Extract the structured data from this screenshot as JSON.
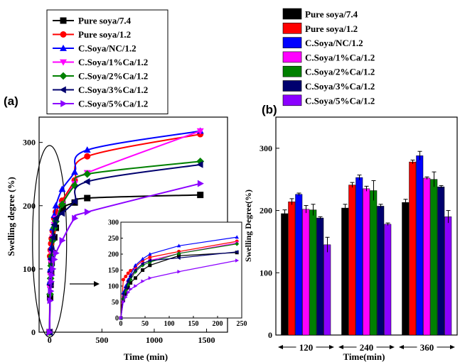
{
  "chart_data": [
    {
      "type": "line",
      "panel_label": "(a)",
      "xlabel": "Time (min)",
      "ylabel": "Swelling degree (%)",
      "xlim": [
        -100,
        1700
      ],
      "ylim": [
        0,
        340
      ],
      "xticks": [
        0,
        500,
        1000,
        1500
      ],
      "yticks": [
        0,
        100,
        200,
        300
      ],
      "legend_position": "top-left",
      "series": [
        {
          "name": "Pure soya/7.4",
          "color": "#000000",
          "marker": "square",
          "x": [
            0,
            5,
            10,
            15,
            20,
            30,
            45,
            60,
            120,
            240,
            360,
            1440
          ],
          "y": [
            0,
            55,
            75,
            95,
            110,
            125,
            150,
            165,
            195,
            205,
            212,
            217
          ]
        },
        {
          "name": "Pure soya/1.2",
          "color": "#ff0000",
          "marker": "circle",
          "x": [
            0,
            5,
            10,
            15,
            20,
            30,
            45,
            60,
            120,
            240,
            360,
            1440
          ],
          "y": [
            0,
            120,
            130,
            140,
            148,
            160,
            180,
            190,
            208,
            240,
            278,
            313
          ]
        },
        {
          "name": "C.Soya/NC/1.2",
          "color": "#0000ff",
          "marker": "triangle-up",
          "x": [
            0,
            5,
            10,
            15,
            20,
            30,
            45,
            60,
            120,
            240,
            360,
            1440
          ],
          "y": [
            0,
            80,
            100,
            120,
            135,
            165,
            185,
            200,
            226,
            253,
            288,
            318
          ]
        },
        {
          "name": "C.Soya/1%Ca/1.2",
          "color": "#ff00ff",
          "marker": "triangle-down",
          "x": [
            0,
            5,
            10,
            15,
            20,
            30,
            45,
            60,
            120,
            240,
            360,
            1440
          ],
          "y": [
            0,
            70,
            90,
            110,
            125,
            150,
            170,
            180,
            202,
            235,
            252,
            318
          ]
        },
        {
          "name": "C.Soya/2%Ca/1.2",
          "color": "#008000",
          "marker": "diamond",
          "x": [
            0,
            5,
            10,
            15,
            20,
            30,
            45,
            60,
            120,
            240,
            360,
            1440
          ],
          "y": [
            0,
            60,
            85,
            105,
            120,
            145,
            165,
            175,
            202,
            232,
            250,
            270
          ]
        },
        {
          "name": "C.Soya/3%Ca/1.2",
          "color": "#00006e",
          "marker": "triangle-left",
          "x": [
            0,
            5,
            10,
            15,
            20,
            30,
            45,
            60,
            120,
            240,
            360,
            1440
          ],
          "y": [
            0,
            75,
            95,
            115,
            130,
            150,
            170,
            180,
            188,
            207,
            238,
            265
          ]
        },
        {
          "name": "C.Soya/5%Ca/1.2",
          "color": "#8b00ff",
          "marker": "triangle-right",
          "x": [
            0,
            5,
            10,
            15,
            20,
            30,
            45,
            60,
            120,
            240,
            360,
            1440
          ],
          "y": [
            0,
            50,
            65,
            80,
            90,
            100,
            115,
            125,
            145,
            180,
            190,
            235
          ]
        }
      ],
      "inset": {
        "xlim": [
          0,
          250
        ],
        "ylim": [
          0,
          300
        ],
        "xticks": [
          0,
          50,
          100,
          150,
          200,
          250
        ],
        "yticks": [
          0,
          50,
          100,
          150,
          200,
          250,
          300
        ],
        "series_source": "same series, x <= 240"
      }
    },
    {
      "type": "bar",
      "panel_label": "(b)",
      "xlabel": "Time(min)",
      "ylabel": "Swelling Degree(%)",
      "ylim": [
        0,
        350
      ],
      "yticks": [
        0,
        100,
        200,
        300
      ],
      "categories": [
        "120",
        "240",
        "360"
      ],
      "legend_position": "top",
      "series": [
        {
          "name": "Pure soya/7.4",
          "color": "#000000",
          "values": [
            195,
            204,
            213
          ],
          "errors": [
            6,
            6,
            5
          ]
        },
        {
          "name": "Pure soya/1.2",
          "color": "#ff0000",
          "values": [
            214,
            241,
            278
          ],
          "errors": [
            5,
            4,
            3
          ]
        },
        {
          "name": "C.Soya/NC/1.2",
          "color": "#0000ff",
          "values": [
            226,
            253,
            288
          ],
          "errors": [
            2,
            4,
            7
          ]
        },
        {
          "name": "C.Soya/1%Ca/1.2",
          "color": "#ff00ff",
          "values": [
            202,
            235,
            252
          ],
          "errors": [
            6,
            4,
            2
          ]
        },
        {
          "name": "C.Soya/2%Ca/1.2",
          "color": "#008000",
          "values": [
            201,
            232,
            250
          ],
          "errors": [
            9,
            16,
            12
          ]
        },
        {
          "name": "C.Soya/3%Ca/1.2",
          "color": "#00006e",
          "values": [
            188,
            207,
            238
          ],
          "errors": [
            2,
            3,
            2
          ]
        },
        {
          "name": "C.Soya/5%Ca/1.2",
          "color": "#8b00ff",
          "values": [
            145,
            178,
            190
          ],
          "errors": [
            12,
            2,
            10
          ]
        }
      ]
    }
  ]
}
